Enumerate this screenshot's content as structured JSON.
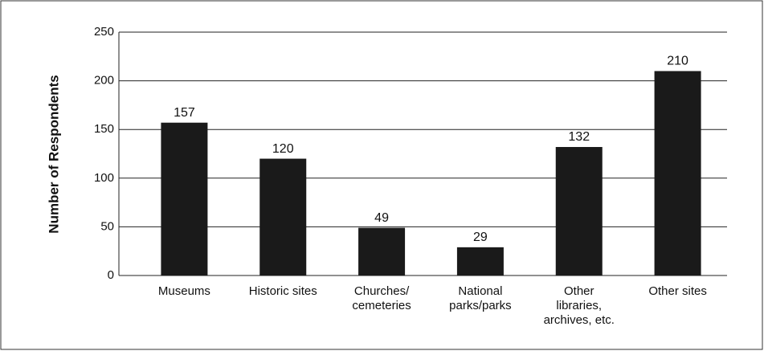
{
  "chart_data": {
    "type": "bar",
    "y_label": "Number of Respondents",
    "categories": [
      "Museums",
      "Historic sites",
      "Churches/\ncemeteries",
      "National\nparks/parks",
      "Other\nlibraries,\narchives, etc.",
      "Other sites"
    ],
    "values": [
      157,
      120,
      49,
      29,
      132,
      210
    ],
    "color": "#1a1a1a",
    "ylim": [
      0,
      250
    ],
    "yticks": [
      0,
      50,
      100,
      150,
      200,
      250
    ],
    "grid": true
  }
}
